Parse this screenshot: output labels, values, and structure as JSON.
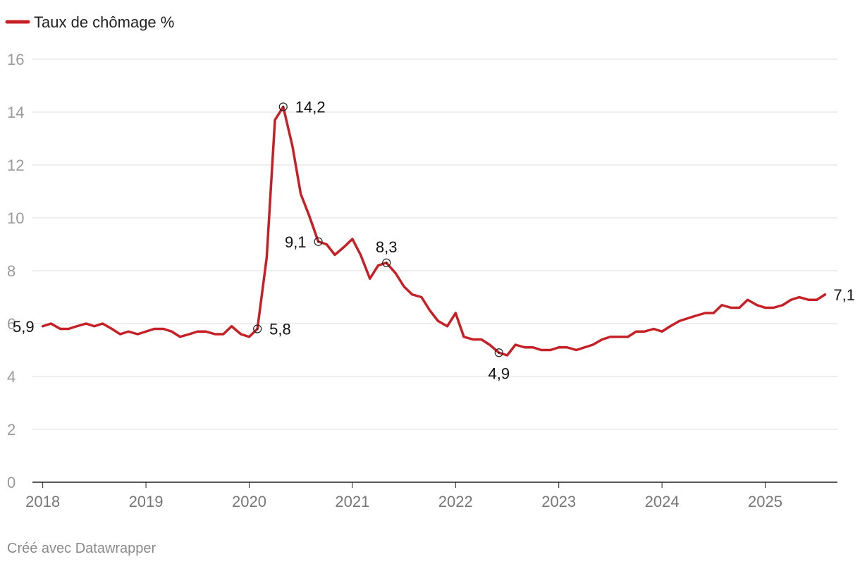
{
  "legend": {
    "label": "Taux de chômage %",
    "color": "#c62026"
  },
  "footer": {
    "credit": "Créé avec Datawrapper"
  },
  "chart_data": {
    "type": "line",
    "title": "",
    "xlabel": "",
    "ylabel": "",
    "grid": true,
    "legend_position": "top-left",
    "xlim": [
      2017.9,
      2025.7
    ],
    "ylim": [
      0,
      16
    ],
    "x_ticks": [
      2018,
      2019,
      2020,
      2021,
      2022,
      2023,
      2024,
      2025
    ],
    "x_tick_labels": [
      "2018",
      "2019",
      "2020",
      "2021",
      "2022",
      "2023",
      "2024",
      "2025"
    ],
    "y_ticks": [
      0,
      2,
      4,
      6,
      8,
      10,
      12,
      14,
      16
    ],
    "y_tick_labels": [
      "0",
      "2",
      "4",
      "6",
      "8",
      "10",
      "12",
      "14",
      "16"
    ],
    "series": [
      {
        "name": "Taux de chômage %",
        "color": "#c62026",
        "x": [
          2018.0,
          2018.08,
          2018.17,
          2018.25,
          2018.33,
          2018.42,
          2018.5,
          2018.58,
          2018.67,
          2018.75,
          2018.83,
          2018.92,
          2019.0,
          2019.08,
          2019.17,
          2019.25,
          2019.33,
          2019.42,
          2019.5,
          2019.58,
          2019.67,
          2019.75,
          2019.83,
          2019.92,
          2020.0,
          2020.08,
          2020.17,
          2020.25,
          2020.33,
          2020.42,
          2020.5,
          2020.58,
          2020.67,
          2020.75,
          2020.83,
          2020.92,
          2021.0,
          2021.08,
          2021.17,
          2021.25,
          2021.33,
          2021.42,
          2021.5,
          2021.58,
          2021.67,
          2021.75,
          2021.83,
          2021.92,
          2022.0,
          2022.08,
          2022.17,
          2022.25,
          2022.33,
          2022.42,
          2022.5,
          2022.58,
          2022.67,
          2022.75,
          2022.83,
          2022.92,
          2023.0,
          2023.08,
          2023.17,
          2023.25,
          2023.33,
          2023.42,
          2023.5,
          2023.58,
          2023.67,
          2023.75,
          2023.83,
          2023.92,
          2024.0,
          2024.08,
          2024.17,
          2024.25,
          2024.33,
          2024.42,
          2024.5,
          2024.58,
          2024.67,
          2024.75,
          2024.83,
          2024.92,
          2025.0,
          2025.08,
          2025.17,
          2025.25,
          2025.33,
          2025.42,
          2025.5,
          2025.58
        ],
        "y": [
          5.9,
          6.0,
          5.8,
          5.8,
          5.9,
          6.0,
          5.9,
          6.0,
          5.8,
          5.6,
          5.7,
          5.6,
          5.7,
          5.8,
          5.8,
          5.7,
          5.5,
          5.6,
          5.7,
          5.7,
          5.6,
          5.6,
          5.9,
          5.6,
          5.5,
          5.8,
          8.5,
          13.7,
          14.2,
          12.7,
          10.9,
          10.1,
          9.1,
          9.0,
          8.6,
          8.9,
          9.2,
          8.6,
          7.7,
          8.2,
          8.3,
          7.9,
          7.4,
          7.1,
          7.0,
          6.5,
          6.1,
          5.9,
          6.4,
          5.5,
          5.4,
          5.4,
          5.2,
          4.9,
          4.8,
          5.2,
          5.1,
          5.1,
          5.0,
          5.0,
          5.1,
          5.1,
          5.0,
          5.1,
          5.2,
          5.4,
          5.5,
          5.5,
          5.5,
          5.7,
          5.7,
          5.8,
          5.7,
          5.9,
          6.1,
          6.2,
          6.3,
          6.4,
          6.4,
          6.7,
          6.6,
          6.6,
          6.9,
          6.7,
          6.6,
          6.6,
          6.7,
          6.9,
          7.0,
          6.9,
          6.9,
          7.1
        ]
      }
    ],
    "annotations": [
      {
        "label": "5,9",
        "x": 2018.0,
        "y": 5.9,
        "marker": false,
        "position": "left"
      },
      {
        "label": "5,8",
        "x": 2020.08,
        "y": 5.8,
        "marker": true,
        "position": "right"
      },
      {
        "label": "14,2",
        "x": 2020.33,
        "y": 14.2,
        "marker": true,
        "position": "right"
      },
      {
        "label": "9,1",
        "x": 2020.67,
        "y": 9.1,
        "marker": true,
        "position": "left"
      },
      {
        "label": "8,3",
        "x": 2021.33,
        "y": 8.3,
        "marker": true,
        "position": "top"
      },
      {
        "label": "4,9",
        "x": 2022.42,
        "y": 4.9,
        "marker": true,
        "position": "bottom"
      },
      {
        "label": "7,1",
        "x": 2025.58,
        "y": 7.1,
        "marker": false,
        "position": "right"
      }
    ]
  }
}
